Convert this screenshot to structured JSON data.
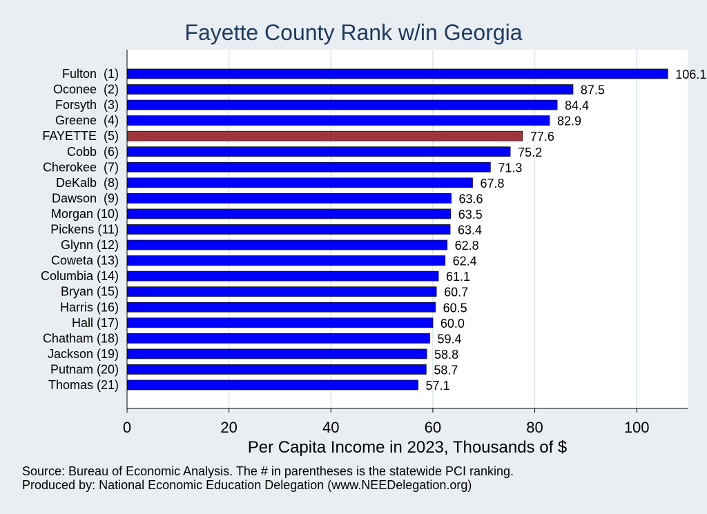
{
  "chart_data": {
    "type": "bar",
    "orientation": "horizontal",
    "title": "Fayette County Rank w/in Georgia",
    "xlabel": "Per Capita Income in 2023, Thousands of $",
    "ylabel": "",
    "xlim": [
      0,
      110
    ],
    "xticks": [
      "0",
      "20",
      "40",
      "60",
      "80",
      "100"
    ],
    "grid": true,
    "categories": [
      "Fulton  (1)",
      "Oconee  (2)",
      "Forsyth  (3)",
      "Greene  (4)",
      "FAYETTE  (5)",
      "Cobb  (6)",
      "Cherokee  (7)",
      "DeKalb  (8)",
      "Dawson  (9)",
      "Morgan (10)",
      "Pickens (11)",
      "Glynn (12)",
      "Coweta (13)",
      "Columbia (14)",
      "Bryan (15)",
      "Harris (16)",
      "Hall (17)",
      "Chatham (18)",
      "Jackson (19)",
      "Putnam (20)",
      "Thomas (21)"
    ],
    "values": [
      106.1,
      87.5,
      84.4,
      82.9,
      77.6,
      75.2,
      71.3,
      67.8,
      63.6,
      63.5,
      63.4,
      62.8,
      62.4,
      61.1,
      60.7,
      60.5,
      60.0,
      59.4,
      58.8,
      58.7,
      57.1
    ],
    "value_labels": [
      "106.1",
      "87.5",
      "84.4",
      "82.9",
      "77.6",
      "75.2",
      "71.3",
      "67.8",
      "63.6",
      "63.5",
      "63.4",
      "62.8",
      "62.4",
      "61.1",
      "60.7",
      "60.5",
      "60.0",
      "59.4",
      "58.8",
      "58.7",
      "57.1"
    ],
    "highlight_index": 4,
    "colors": {
      "bar": "#0000ff",
      "highlight": "#a0363d",
      "grid": "#dce5ea",
      "plot_bg": "#ffffff",
      "page_bg": "#e8eef2",
      "title": "#1f3a60"
    }
  },
  "footnotes": {
    "source": "Source: Bureau of Economic Analysis. The # in parentheses is the statewide PCI ranking.",
    "produced": "Produced by: National Economic Education Delegation (www.NEEDelegation.org)"
  }
}
